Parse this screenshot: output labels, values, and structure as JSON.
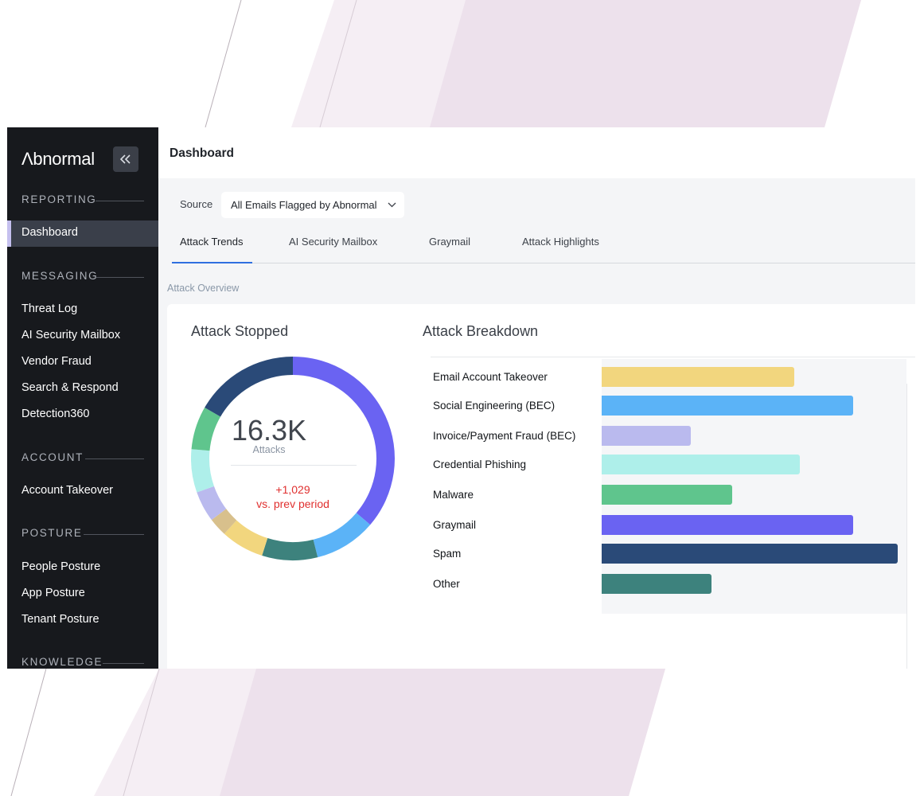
{
  "sidebar": {
    "logo": "Λbnormal",
    "sections": {
      "reporting": "REPORTING",
      "messaging": "MESSAGING",
      "account": "ACCOUNT",
      "posture": "POSTURE",
      "knowledge": "KNOWLEDGE"
    },
    "items": {
      "dashboard": "Dashboard",
      "threat_log": "Threat Log",
      "ai_security_mailbox": "AI Security Mailbox",
      "vendor_fraud": "Vendor Fraud",
      "search_respond": "Search & Respond",
      "detection360": "Detection360",
      "account_takeover": "Account Takeover",
      "people_posture": "People Posture",
      "app_posture": "App Posture",
      "tenant_posture": "Tenant Posture"
    },
    "active_item": "Dashboard"
  },
  "header": {
    "title": "Dashboard"
  },
  "source": {
    "label": "Source",
    "value": "All Emails Flagged by Abnormal"
  },
  "tabs": [
    "Attack Trends",
    "AI Security Mailbox",
    "Graymail",
    "Attack Highlights"
  ],
  "active_tab": "Attack Trends",
  "overview_label": "Attack Overview",
  "attack_stopped": {
    "title": "Attack Stopped",
    "value": "16.3K",
    "unit_label": "Attacks",
    "delta": "+1,029",
    "delta_label": "vs. prev period"
  },
  "breakdown_title": "Attack Breakdown",
  "colors": {
    "email_account_takeover": "#f2d67e",
    "social_engineering": "#5bb3f7",
    "invoice_fraud": "#babaee",
    "credential_phishing": "#aeefea",
    "malware": "#5fc58d",
    "graymail": "#6a63f2",
    "spam": "#2a4a78",
    "other": "#3d827d",
    "extra_tan": "#d8c08c",
    "delta_red": "#e0302f",
    "tab_accent": "#2f6fe0"
  },
  "chart_data": [
    {
      "type": "pie",
      "title": "Attack Stopped",
      "categories": [
        "Graymail",
        "Social Engineering (BEC)",
        "Other",
        "Email Account Takeover",
        "Tan",
        "Invoice/Payment Fraud (BEC)",
        "Credential Phishing",
        "Malware",
        "Spam"
      ],
      "values": [
        37,
        10,
        9,
        7,
        3,
        5,
        7,
        7,
        17
      ]
    },
    {
      "type": "bar",
      "title": "Attack Breakdown",
      "categories": [
        "Email Account Takeover",
        "Social Engineering (BEC)",
        "Invoice/Payment Fraud (BEC)",
        "Credential Phishing",
        "Malware",
        "Graymail",
        "Spam",
        "Other"
      ],
      "values": [
        65,
        85,
        30,
        67,
        44,
        85,
        100,
        37
      ]
    }
  ]
}
